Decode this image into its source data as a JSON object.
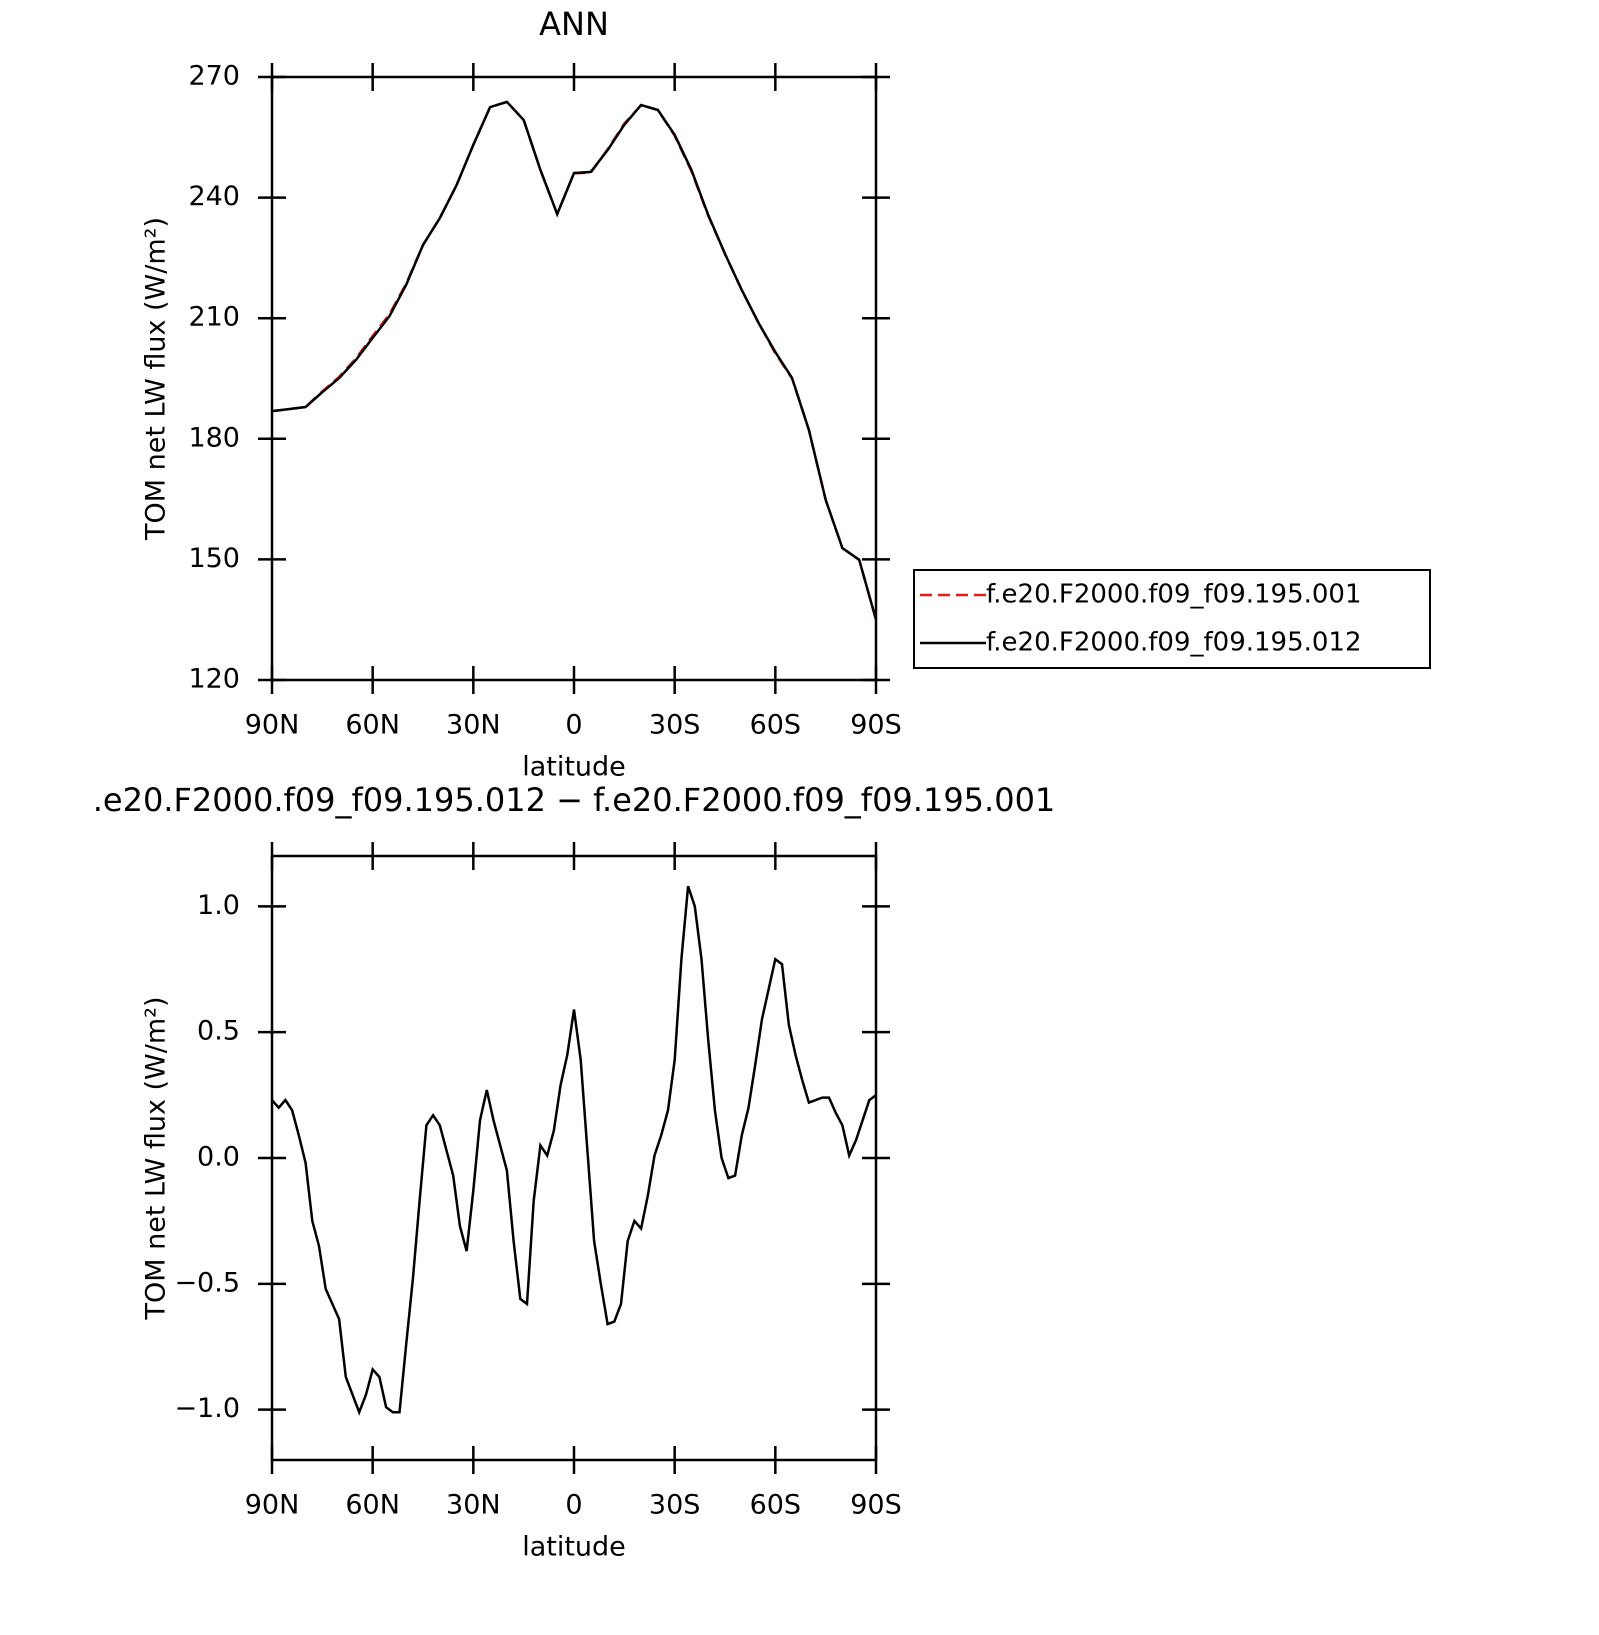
{
  "chart_data": [
    {
      "type": "line",
      "title": "ANN",
      "x_label": "latitude",
      "y_label": "TOM net LW flux (W/m²)",
      "xlim": [
        90,
        -90
      ],
      "ylim": [
        120,
        270
      ],
      "xticks": [
        {
          "value": 90,
          "label": "90N"
        },
        {
          "value": 60,
          "label": "60N"
        },
        {
          "value": 30,
          "label": "30N"
        },
        0,
        {
          "value": -30,
          "label": "30S"
        },
        {
          "value": -60,
          "label": "60S"
        },
        {
          "value": -90,
          "label": "90S"
        }
      ],
      "yticks": [
        120,
        150,
        180,
        210,
        240,
        270
      ],
      "x": [
        90,
        85,
        80,
        75,
        70,
        65,
        60,
        55,
        50,
        45,
        40,
        35,
        30,
        25,
        20,
        15,
        10,
        5,
        0,
        -5,
        -10,
        -15,
        -20,
        -25,
        -30,
        -35,
        -40,
        -45,
        -50,
        -55,
        -60,
        -65,
        -70,
        -75,
        -80,
        -85,
        -90
      ],
      "legend": true,
      "series": [
        {
          "name": "f.e20.F2000.f09_f09.195.001",
          "color": "#e41a1c",
          "dash": true,
          "values": [
            186.9,
            187.4,
            187.9,
            191.8,
            195.4,
            200.0,
            205.6,
            211.0,
            218.6,
            228.2,
            234.9,
            243.1,
            253.1,
            262.5,
            263.8,
            259.3,
            246.9,
            235.9,
            246.1,
            246.2,
            252.0,
            258.4,
            263.0,
            261.8,
            255.4,
            246.6,
            235.5,
            226.0,
            217.0,
            208.8,
            201.3,
            195.0,
            182.2,
            164.8,
            152.8,
            149.9,
            135.0
          ]
        },
        {
          "name": "f.e20.F2000.f09_f09.195.012",
          "color": "#000000",
          "dash": false,
          "values": [
            186.9,
            187.4,
            187.9,
            191.6,
            195.1,
            199.6,
            205.1,
            210.5,
            218.3,
            228.2,
            234.9,
            243.1,
            253.1,
            262.5,
            263.8,
            259.3,
            246.9,
            235.9,
            246.1,
            246.4,
            251.8,
            258.1,
            263.0,
            261.8,
            255.6,
            246.9,
            235.7,
            226.0,
            217.0,
            208.8,
            201.6,
            195.1,
            182.2,
            164.8,
            152.8,
            149.9,
            135.0
          ]
        }
      ]
    },
    {
      "type": "line",
      "title": ".e20.F2000.f09_f09.195.012 − f.e20.F2000.f09_f09.195.001",
      "x_label": "latitude",
      "y_label": "TOM net LW flux (W/m²)",
      "xlim": [
        90,
        -90
      ],
      "ylim": [
        -1.2,
        1.2
      ],
      "xticks": [
        {
          "value": 90,
          "label": "90N"
        },
        {
          "value": 60,
          "label": "60N"
        },
        {
          "value": 30,
          "label": "30N"
        },
        0,
        {
          "value": -30,
          "label": "30S"
        },
        {
          "value": -60,
          "label": "60S"
        },
        {
          "value": -90,
          "label": "90S"
        }
      ],
      "yticks": [
        {
          "value": -1.0,
          "label": "−1.0"
        },
        {
          "value": -0.5,
          "label": "−0.5"
        },
        {
          "value": 0.0,
          "label": "0.0"
        },
        0.5,
        {
          "value": 1.0,
          "label": "1.0"
        }
      ],
      "x": [
        90,
        88,
        86,
        84,
        82,
        80,
        78,
        76,
        74,
        72,
        70,
        68,
        66,
        64,
        62,
        60,
        58,
        56,
        54,
        52,
        50,
        48,
        46,
        44,
        42,
        40,
        38,
        36,
        34,
        32,
        30,
        28,
        26,
        24,
        22,
        20,
        18,
        16,
        14,
        12,
        10,
        8,
        6,
        4,
        2,
        0,
        -2,
        -4,
        -6,
        -8,
        -10,
        -12,
        -14,
        -16,
        -18,
        -20,
        -22,
        -24,
        -26,
        -28,
        -30,
        -32,
        -34,
        -36,
        -38,
        -40,
        -42,
        -44,
        -46,
        -48,
        -50,
        -52,
        -54,
        -56,
        -58,
        -60,
        -62,
        -64,
        -66,
        -68,
        -70,
        -72,
        -74,
        -76,
        -78,
        -80,
        -82,
        -84,
        -86,
        -88,
        -90
      ],
      "legend": false,
      "series": [
        {
          "color": "#000000",
          "dash": false,
          "values": [
            0.23,
            0.2,
            0.23,
            0.19,
            0.09,
            -0.02,
            -0.25,
            -0.35,
            -0.52,
            -0.58,
            -0.64,
            -0.87,
            -0.94,
            -1.01,
            -0.94,
            -0.84,
            -0.87,
            -0.99,
            -1.01,
            -1.01,
            -0.74,
            -0.48,
            -0.17,
            0.13,
            0.17,
            0.13,
            0.03,
            -0.07,
            -0.27,
            -0.37,
            -0.13,
            0.15,
            0.27,
            0.15,
            0.05,
            -0.05,
            -0.33,
            -0.56,
            -0.58,
            -0.17,
            0.05,
            0.01,
            0.11,
            0.29,
            0.41,
            0.59,
            0.39,
            0.03,
            -0.33,
            -0.5,
            -0.66,
            -0.65,
            -0.58,
            -0.33,
            -0.25,
            -0.28,
            -0.15,
            0.01,
            0.09,
            0.19,
            0.39,
            0.79,
            1.08,
            1.0,
            0.79,
            0.47,
            0.19,
            0.0,
            -0.08,
            -0.07,
            0.09,
            0.2,
            0.37,
            0.55,
            0.67,
            0.79,
            0.77,
            0.53,
            0.41,
            0.31,
            0.22,
            0.23,
            0.24,
            0.24,
            0.18,
            0.13,
            0.01,
            0.07,
            0.15,
            0.23,
            0.25
          ]
        }
      ]
    }
  ]
}
